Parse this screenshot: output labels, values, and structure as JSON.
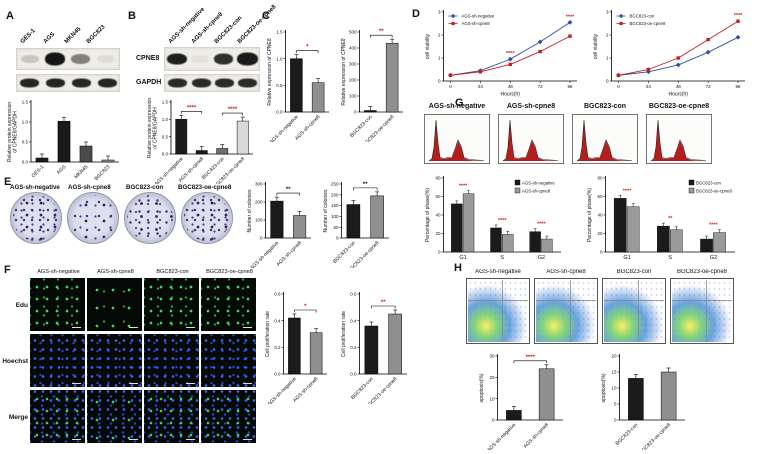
{
  "figure": {
    "background": "#ffffff"
  },
  "panels": {
    "A": {
      "letter": "A",
      "lanes": [
        "GES-1",
        "AGS",
        "MKN45",
        "BGC823"
      ]
    },
    "B": {
      "letter": "B",
      "lanes": [
        "AGS-sh-negative",
        "AGS-sh-cpne8",
        "BGC823-con",
        "BGC823-oe-cpne8"
      ],
      "rows": [
        "CPNE8",
        "GAPDH"
      ]
    },
    "C": {
      "letter": "C"
    },
    "D": {
      "letter": "D"
    },
    "E": {
      "letter": "E",
      "labels": [
        "AGS-sh-negative",
        "AGS-sh-cpne8",
        "BGC823-con",
        "BGC823-oe-cpne8"
      ]
    },
    "F": {
      "letter": "F",
      "columns": [
        "AGS-sh-negative",
        "AGS-sh-cpne8",
        "BGC823-con",
        "BGC823-oe-cpne8"
      ],
      "rows": [
        "Edu",
        "Hoechst",
        "Merge"
      ]
    },
    "G": {
      "letter": "G",
      "columns": [
        "AGS-sh-negative",
        "AGS-sh-cpne8",
        "BGC823-con",
        "BGC823-oe-cpne8"
      ]
    },
    "H": {
      "letter": "H",
      "columns": [
        "AGS-sh-negative",
        "AGS-sh-cpne8",
        "BGC823-con",
        "BGC823-oe-cpne8"
      ]
    }
  },
  "colors": {
    "bar_dark": "#1b1b1b",
    "bar_gray": "#8f8f8f",
    "bar_light": "#d9d9d9",
    "line_blue": "#2e4fa3",
    "line_red": "#c01f1f",
    "sig_red": "#c8251d",
    "colony_purple": "#4a2f82",
    "edu_green": "#3ddb63",
    "hoechst_blue": "#3b5df0",
    "flow_peak_red": "#b81d1d"
  },
  "chart_data": [
    {
      "el": "chart-a",
      "type": "bar",
      "ylabel": [
        "Relative protein expression",
        "of CPNE8/GAPDH"
      ],
      "ylim": [
        0,
        1.5
      ],
      "yticks": [
        "0.0",
        "0.5",
        "1.0",
        "1.5"
      ],
      "categories": [
        "GES-1",
        "AGS",
        "MKN45",
        "BGC823"
      ],
      "values": [
        0.1,
        1.02,
        0.4,
        0.05
      ],
      "colors": [
        "#1b1b1b",
        "#1b1b1b",
        "#4a4a4a",
        "#8f8f8f"
      ]
    },
    {
      "el": "chart-b",
      "type": "bar",
      "ylabel": [
        "Relative protein expression",
        "of CPNE8/GAPDH"
      ],
      "ylim": [
        0,
        1.5
      ],
      "yticks": [
        "0.0",
        "0.5",
        "1.0",
        "1.5"
      ],
      "categories": [
        "AGS-sh-negative",
        "AGS-sh-cpne8",
        "BGC823-con",
        "BGC823-oe-cpne8"
      ],
      "values": [
        1.0,
        0.1,
        0.16,
        0.95
      ],
      "colors": [
        "#1b1b1b",
        "#1b1b1b",
        "#6f6f6f",
        "#d9d9d9"
      ],
      "sig": [
        [
          0,
          1,
          "****"
        ],
        [
          2,
          3,
          "****"
        ]
      ],
      "sigcolor": "#c8251d"
    },
    {
      "el": "chart-c1",
      "type": "bar",
      "ylabel": "Relative expression of CPNE8",
      "ylim": [
        0,
        1.5
      ],
      "yticks": [
        "0.0",
        "0.5",
        "1.0",
        "1.5"
      ],
      "categories": [
        "AGS-sh-negative",
        "AGS-sh-cpne8"
      ],
      "values": [
        1.0,
        0.55
      ],
      "colors": [
        "#1b1b1b",
        "#8f8f8f"
      ],
      "sig": [
        [
          0,
          1,
          "*"
        ]
      ],
      "sigcolor": "#c8251d"
    },
    {
      "el": "chart-c2",
      "type": "bar",
      "ylabel": "Relative expression of CPNE8",
      "ylim": [
        0,
        500
      ],
      "yticks": [
        "0",
        "100",
        "200",
        "300",
        "400",
        "500"
      ],
      "categories": [
        "BGC823-con",
        "BGC823-oe-cpne8"
      ],
      "values": [
        1,
        430
      ],
      "colors": [
        "#1b1b1b",
        "#8f8f8f"
      ],
      "sig": [
        [
          0,
          1,
          "**"
        ]
      ],
      "sigcolor": "#c8251d"
    },
    {
      "el": "chart-d1",
      "type": "line",
      "ylabel": "cell viability",
      "xlabel": "Hours(h)",
      "x": [
        0,
        24,
        48,
        72,
        96
      ],
      "xticks": [
        "0",
        "24",
        "48",
        "72",
        "96"
      ],
      "ylim": [
        0,
        3
      ],
      "yticks": [
        "0",
        "1",
        "2",
        "3"
      ],
      "series": [
        {
          "name": "AGS-sh-negative",
          "color": "#2e4fa3",
          "marker": "diamond",
          "values": [
            0.25,
            0.45,
            0.95,
            1.7,
            2.55
          ]
        },
        {
          "name": "AGS-sh-cpne8",
          "color": "#c01f1f",
          "marker": "square",
          "values": [
            0.25,
            0.4,
            0.72,
            1.28,
            1.95
          ]
        }
      ],
      "annotations": [
        {
          "xi": 2,
          "label": "****"
        },
        {
          "xi": 4,
          "label": "****"
        }
      ],
      "sigcolor": "#c8251d"
    },
    {
      "el": "chart-d2",
      "type": "line",
      "ylabel": "cell viability",
      "xlabel": "Hours(h)",
      "x": [
        0,
        24,
        48,
        72,
        96
      ],
      "xticks": [
        "0",
        "24",
        "48",
        "72",
        "96"
      ],
      "ylim": [
        0,
        3
      ],
      "yticks": [
        "0",
        "1",
        "2",
        "3"
      ],
      "series": [
        {
          "name": "BGC823-con",
          "color": "#2e4fa3",
          "marker": "diamond",
          "values": [
            0.25,
            0.4,
            0.7,
            1.25,
            1.9
          ]
        },
        {
          "name": "BGC823-oe-cpne8",
          "color": "#c01f1f",
          "marker": "square",
          "values": [
            0.25,
            0.5,
            1.0,
            1.8,
            2.6
          ]
        }
      ],
      "annotations": [
        {
          "xi": 4,
          "label": "****"
        }
      ],
      "sigcolor": "#c8251d"
    },
    {
      "el": "chart-e1",
      "type": "bar",
      "ylabel": "Number of colonies",
      "ylim": [
        0,
        300
      ],
      "yticks": [
        "0",
        "100",
        "200",
        "300"
      ],
      "categories": [
        "AGS-sh-negative",
        "AGS-sh-cpne8"
      ],
      "values": [
        205,
        125
      ],
      "colors": [
        "#1b1b1b",
        "#8f8f8f"
      ],
      "sig": [
        [
          0,
          1,
          "**"
        ]
      ],
      "sigcolor": "#1b1b1b"
    },
    {
      "el": "chart-e2",
      "type": "bar",
      "ylabel": "Number of colonies",
      "ylim": [
        0,
        250
      ],
      "yticks": [
        "0",
        "50",
        "100",
        "150",
        "200",
        "250"
      ],
      "categories": [
        "BGC823-con",
        "BGC823-oe-cpne8"
      ],
      "values": [
        155,
        195
      ],
      "colors": [
        "#1b1b1b",
        "#8f8f8f"
      ],
      "sig": [
        [
          0,
          1,
          "**"
        ]
      ],
      "sigcolor": "#1b1b1b"
    },
    {
      "el": "chart-f1",
      "type": "bar",
      "ylabel": "Cell proliferation rate",
      "ylim": [
        0,
        0.6
      ],
      "yticks": [
        "0.0",
        "0.2",
        "0.4",
        "0.6"
      ],
      "categories": [
        "AGS-sh-negative",
        "AGS-sh-cpne8"
      ],
      "values": [
        0.42,
        0.31
      ],
      "colors": [
        "#1b1b1b",
        "#8f8f8f"
      ],
      "sig": [
        [
          0,
          1,
          "*"
        ]
      ],
      "sigcolor": "#c8251d"
    },
    {
      "el": "chart-f2",
      "type": "bar",
      "ylabel": "Cell proliferation rate",
      "ylim": [
        0,
        0.6
      ],
      "yticks": [
        "0.0",
        "0.2",
        "0.4",
        "0.6"
      ],
      "categories": [
        "BGC823-con",
        "BGC823-oe-cpne8"
      ],
      "values": [
        0.36,
        0.45
      ],
      "colors": [
        "#1b1b1b",
        "#8f8f8f"
      ],
      "sig": [
        [
          0,
          1,
          "**"
        ]
      ],
      "sigcolor": "#c8251d"
    },
    {
      "el": "chart-g1",
      "type": "groupbar",
      "ylabel": "Percentage of phase(%)",
      "ylim": [
        0,
        80
      ],
      "yticks": [
        "0",
        "20",
        "40",
        "60",
        "80"
      ],
      "categories": [
        "G1",
        "S",
        "G2"
      ],
      "series": [
        {
          "name": "AGS-sh-negative",
          "color": "#1b1b1b",
          "values": [
            52,
            26,
            22
          ]
        },
        {
          "name": "AGS-sh-cpne8",
          "color": "#9a9a9a",
          "values": [
            63,
            19,
            14
          ]
        }
      ],
      "sig": [
        "****",
        "****",
        "****"
      ],
      "sigcolor": "#c8251d",
      "legend": true
    },
    {
      "el": "chart-g2",
      "type": "groupbar",
      "ylabel": "Percentage of phase(%)",
      "ylim": [
        0,
        80
      ],
      "yticks": [
        "0",
        "20",
        "40",
        "60",
        "80"
      ],
      "categories": [
        "G1",
        "S",
        "G2"
      ],
      "series": [
        {
          "name": "BGC823-con",
          "color": "#1b1b1b",
          "values": [
            58,
            28,
            14
          ]
        },
        {
          "name": "BGC823-oe-cpne8",
          "color": "#9a9a9a",
          "values": [
            49,
            24,
            21
          ]
        }
      ],
      "sig": [
        "****",
        "**",
        "****"
      ],
      "sigcolor": "#c8251d",
      "legend": true
    },
    {
      "el": "chart-h1",
      "type": "bar",
      "ylabel": "apoptosis(%)",
      "ylim": [
        0,
        30
      ],
      "yticks": [
        "0",
        "10",
        "20",
        "30"
      ],
      "categories": [
        "AGS-sh-negative",
        "AGS-sh-cpne8"
      ],
      "values": [
        4.5,
        24
      ],
      "colors": [
        "#1b1b1b",
        "#8f8f8f"
      ],
      "sig": [
        [
          0,
          1,
          "****"
        ]
      ],
      "sigcolor": "#c8251d"
    },
    {
      "el": "chart-h2",
      "type": "bar",
      "ylabel": "apoptosis(%)",
      "ylim": [
        0,
        20
      ],
      "yticks": [
        "0",
        "5",
        "10",
        "15",
        "20"
      ],
      "categories": [
        "BGC823-con",
        "BGC823-oe-cpne8"
      ],
      "values": [
        13,
        15
      ],
      "colors": [
        "#1b1b1b",
        "#8f8f8f"
      ]
    }
  ]
}
